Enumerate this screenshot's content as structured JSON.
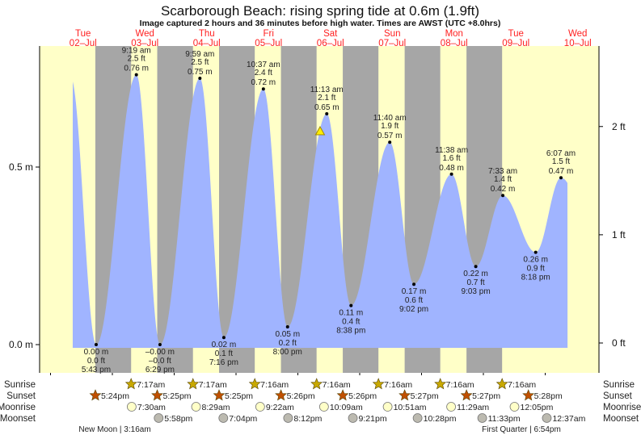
{
  "chart_data": {
    "type": "area",
    "title": "Scarborough Beach: rising  spring tide at 0.6m (1.9ft)",
    "subtitle": "Image captured 2 hours and 36 minutes before high water. Times are AWST (UTC +8.0hrs)",
    "days": [
      {
        "dow": "Tue",
        "date": "02–Jul"
      },
      {
        "dow": "Wed",
        "date": "03–Jul"
      },
      {
        "dow": "Thu",
        "date": "04–Jul"
      },
      {
        "dow": "Fri",
        "date": "05–Jul"
      },
      {
        "dow": "Sat",
        "date": "06–Jul"
      },
      {
        "dow": "Sun",
        "date": "07–Jul"
      },
      {
        "dow": "Mon",
        "date": "08–Jul"
      },
      {
        "dow": "Tue",
        "date": "09–Jul"
      },
      {
        "dow": "Wed",
        "date": "10–Jul"
      }
    ],
    "y_left": {
      "unit": "m",
      "ylim": [
        -0.07,
        0.84
      ],
      "ticks": [
        {
          "v": 0.0,
          "label": "0.0 m"
        },
        {
          "v": 0.5,
          "label": "0.5 m"
        }
      ]
    },
    "y_right": {
      "unit": "ft",
      "ticks": [
        {
          "v": 0,
          "label": "0 ft"
        },
        {
          "v": 1,
          "label": "1 ft"
        },
        {
          "v": 2,
          "label": "2 ft"
        }
      ]
    },
    "grid": false,
    "series_start": {
      "date": "02–Jul",
      "time": "8:37 am",
      "height_m": 0.74
    },
    "series_end": {
      "date": "10–Jul",
      "time": "8:40 am",
      "height_m": 0.44
    },
    "extremes": [
      {
        "type": "low",
        "date": "02–Jul",
        "time": "5:43 pm",
        "m": "0.00 m",
        "ft": "0.0 ft",
        "height_m": 0.0
      },
      {
        "type": "high",
        "date": "03–Jul",
        "time": "9:19 am",
        "m": "0.76 m",
        "ft": "2.5 ft",
        "height_m": 0.76
      },
      {
        "type": "low",
        "date": "03–Jul",
        "time": "6:29 pm",
        "m": "–0.00 m",
        "ft": "–0.0 ft",
        "height_m": 0.0
      },
      {
        "type": "high",
        "date": "04–Jul",
        "time": "9:59 am",
        "m": "0.75 m",
        "ft": "2.5 ft",
        "height_m": 0.75
      },
      {
        "type": "low",
        "date": "04–Jul",
        "time": "7:16 pm",
        "m": "0.02 m",
        "ft": "0.1 ft",
        "height_m": 0.02
      },
      {
        "type": "high",
        "date": "05–Jul",
        "time": "10:37 am",
        "m": "0.72 m",
        "ft": "2.4 ft",
        "height_m": 0.72
      },
      {
        "type": "low",
        "date": "05–Jul",
        "time": "8:00 pm",
        "m": "0.05 m",
        "ft": "0.2 ft",
        "height_m": 0.05
      },
      {
        "type": "high",
        "date": "06–Jul",
        "time": "11:13 am",
        "m": "0.65 m",
        "ft": "2.1 ft",
        "height_m": 0.65
      },
      {
        "type": "low",
        "date": "06–Jul",
        "time": "8:38 pm",
        "m": "0.11 m",
        "ft": "0.4 ft",
        "height_m": 0.11
      },
      {
        "type": "high",
        "date": "07–Jul",
        "time": "11:40 am",
        "m": "0.57 m",
        "ft": "1.9 ft",
        "height_m": 0.57
      },
      {
        "type": "low",
        "date": "07–Jul",
        "time": "9:02 pm",
        "m": "0.17 m",
        "ft": "0.6 ft",
        "height_m": 0.17
      },
      {
        "type": "high",
        "date": "08–Jul",
        "time": "11:38 am",
        "m": "0.48 m",
        "ft": "1.6 ft",
        "height_m": 0.48
      },
      {
        "type": "low",
        "date": "08–Jul",
        "time": "9:03 pm",
        "m": "0.22 m",
        "ft": "0.7 ft",
        "height_m": 0.22
      },
      {
        "type": "high",
        "date": "09–Jul",
        "time": "7:33 am",
        "m": "0.42 m",
        "ft": "1.4 ft",
        "height_m": 0.42
      },
      {
        "type": "low",
        "date": "09–Jul",
        "time": "8:18 pm",
        "m": "0.26 m",
        "ft": "0.9 ft",
        "height_m": 0.26
      },
      {
        "type": "high",
        "date": "10–Jul",
        "time": "6:07 am",
        "m": "0.47 m",
        "ft": "1.5 ft",
        "height_m": 0.47
      }
    ],
    "now_marker": {
      "icon": "warning-triangle-icon",
      "date": "06–Jul",
      "time": "8:37 am",
      "height_m": 0.6
    },
    "colors": {
      "water": "#a0b4ff",
      "day": "#ffffc8",
      "night": "#a6a6a6",
      "day_label": "#ff2020",
      "sunrise": "#c8a800",
      "sunset": "#c05000",
      "moonrise": "#ffffc8",
      "moonset": "#bcbab0"
    },
    "rows": {
      "sunrise": {
        "label": "Sunrise",
        "events": [
          {
            "date": "03–Jul",
            "time": "7:17am"
          },
          {
            "date": "04–Jul",
            "time": "7:17am"
          },
          {
            "date": "05–Jul",
            "time": "7:16am"
          },
          {
            "date": "06–Jul",
            "time": "7:16am"
          },
          {
            "date": "07–Jul",
            "time": "7:16am"
          },
          {
            "date": "08–Jul",
            "time": "7:16am"
          },
          {
            "date": "09–Jul",
            "time": "7:16am"
          }
        ]
      },
      "sunset": {
        "label": "Sunset",
        "events": [
          {
            "date": "02–Jul",
            "time": "5:24pm"
          },
          {
            "date": "03–Jul",
            "time": "5:25pm"
          },
          {
            "date": "04–Jul",
            "time": "5:25pm"
          },
          {
            "date": "05–Jul",
            "time": "5:26pm"
          },
          {
            "date": "06–Jul",
            "time": "5:26pm"
          },
          {
            "date": "07–Jul",
            "time": "5:27pm"
          },
          {
            "date": "08–Jul",
            "time": "5:27pm"
          },
          {
            "date": "09–Jul",
            "time": "5:28pm"
          }
        ]
      },
      "moonrise": {
        "label": "Moonrise",
        "events": [
          {
            "date": "03–Jul",
            "time": "7:30am"
          },
          {
            "date": "04–Jul",
            "time": "8:29am"
          },
          {
            "date": "05–Jul",
            "time": "9:22am"
          },
          {
            "date": "06–Jul",
            "time": "10:09am"
          },
          {
            "date": "07–Jul",
            "time": "10:51am"
          },
          {
            "date": "08–Jul",
            "time": "11:29am"
          },
          {
            "date": "09–Jul",
            "time": "12:05pm"
          }
        ]
      },
      "moonset": {
        "label": "Moonset",
        "events": [
          {
            "date": "03–Jul",
            "time": "5:58pm"
          },
          {
            "date": "04–Jul",
            "time": "7:04pm"
          },
          {
            "date": "05–Jul",
            "time": "8:12pm"
          },
          {
            "date": "06–Jul",
            "time": "9:21pm"
          },
          {
            "date": "07–Jul",
            "time": "10:28pm"
          },
          {
            "date": "08–Jul",
            "time": "11:33pm"
          },
          {
            "date": "10–Jul",
            "time": "12:37am"
          }
        ]
      }
    },
    "moon_phases": [
      {
        "text": "New Moon | 3:16am"
      },
      {
        "text": "First Quarter | 6:54pm"
      }
    ]
  }
}
